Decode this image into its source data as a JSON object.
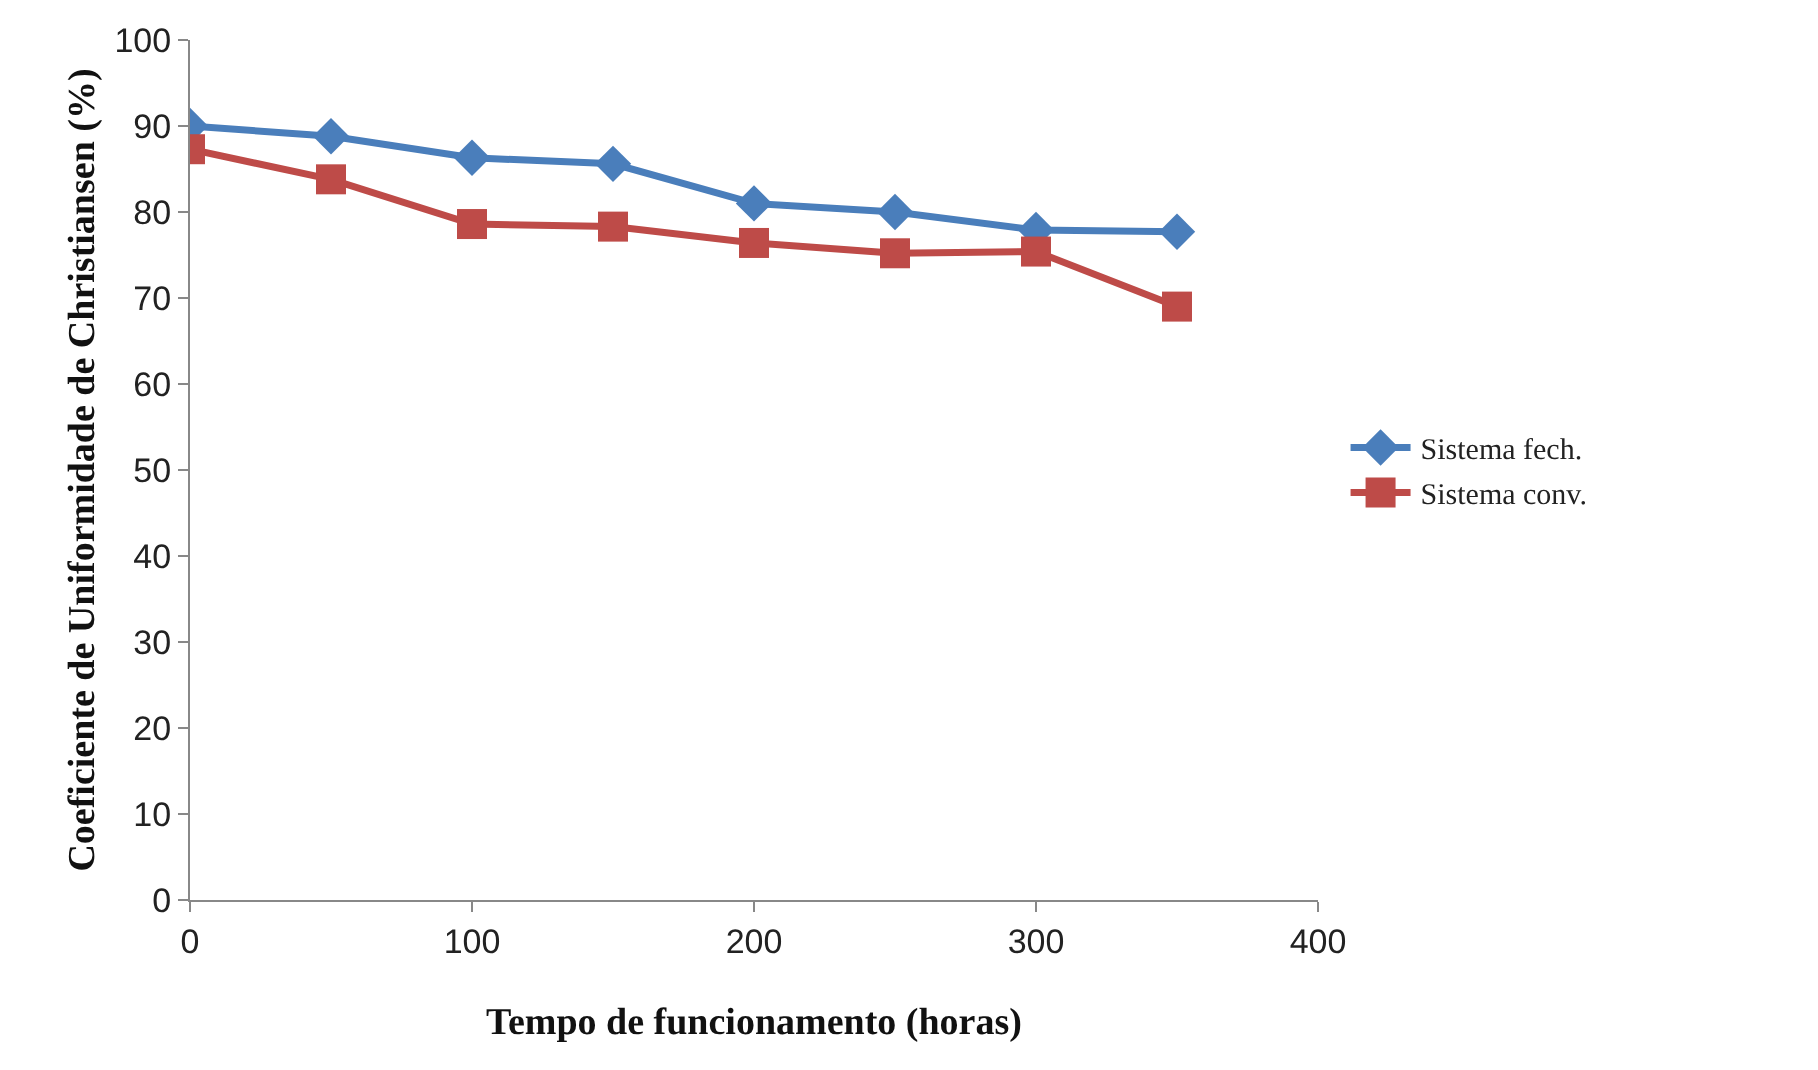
{
  "chart_data": {
    "type": "line",
    "xlabel": "Tempo de funcionamento (horas)",
    "ylabel": "Coeficiente de Uniformidade de Christiansen (%)",
    "x": [
      0,
      50,
      100,
      150,
      200,
      250,
      300,
      350
    ],
    "series": [
      {
        "name": "Sistema fech.",
        "color": "#4a7ebb",
        "marker": "diamond",
        "values": [
          90,
          88.8,
          86.3,
          85.6,
          81,
          80,
          77.9,
          77.7
        ]
      },
      {
        "name": "Sistema conv.",
        "color": "#be4b48",
        "marker": "square",
        "values": [
          87.3,
          83.8,
          78.6,
          78.3,
          76.4,
          75.2,
          75.4,
          69
        ]
      }
    ],
    "xlim": [
      0,
      400
    ],
    "xticks": [
      0,
      100,
      200,
      300,
      400
    ],
    "ylim": [
      0,
      100
    ],
    "yticks": [
      0,
      10,
      20,
      30,
      40,
      50,
      60,
      70,
      80,
      90,
      100
    ],
    "grid": false,
    "legend": "right",
    "line_style": "solid"
  }
}
